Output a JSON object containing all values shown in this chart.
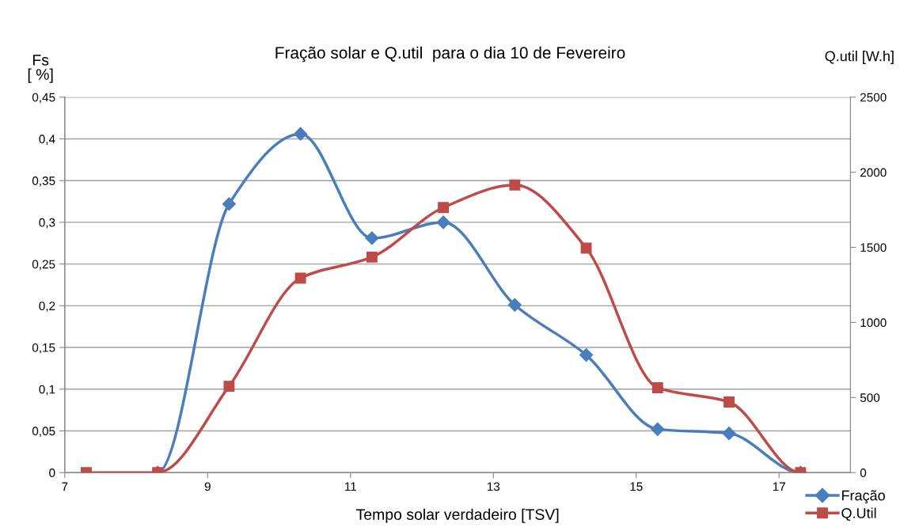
{
  "chart_data": {
    "type": "line",
    "title": "Fração solar e Q.util  para o dia 10 de Fevereiro",
    "xlabel": "Tempo solar verdadeiro [TSV]",
    "ylabel": "Fs\n[ %]",
    "y2label": "Q.util [W.h]",
    "xlim": [
      7,
      18
    ],
    "xticks": [
      7,
      9,
      11,
      13,
      15,
      17
    ],
    "ylim": [
      0,
      0.45
    ],
    "yticks": [
      0,
      {
        "value": 0.05,
        "label": "0,05"
      },
      {
        "value": 0.1,
        "label": "0,1"
      },
      {
        "value": 0.15,
        "label": "0,15"
      },
      {
        "value": 0.2,
        "label": "0,2"
      },
      {
        "value": 0.25,
        "label": "0,25"
      },
      {
        "value": 0.3,
        "label": "0,3"
      },
      {
        "value": 0.35,
        "label": "0,35"
      },
      {
        "value": 0.4,
        "label": "0,4"
      },
      {
        "value": 0.45,
        "label": "0,45"
      }
    ],
    "y2lim": [
      0,
      2500
    ],
    "y2ticks": [
      0,
      500,
      1000,
      1500,
      2000,
      2500
    ],
    "grid": "y",
    "legend": "bottom right",
    "line_style": "solid",
    "series": [
      {
        "name": "Fração",
        "color": "#4a7ebb",
        "marker": "diamond",
        "x": [
          8.3,
          9.3,
          10.3,
          11.3,
          12.3,
          13.3,
          14.3,
          15.3,
          16.3,
          17.3
        ],
        "values": [
          0,
          0.322,
          0.406,
          0.281,
          0.3,
          0.201,
          0.141,
          0.052,
          0.047,
          0
        ]
      },
      {
        "name": "Q.Util",
        "color": "#be4b48",
        "marker": "square",
        "axis": "y2",
        "x": [
          7.3,
          8.3,
          9.3,
          10.3,
          11.3,
          12.3,
          13.3,
          14.3,
          15.3,
          16.3,
          17.3
        ],
        "values": [
          0,
          0,
          575,
          1295,
          1435,
          1765,
          1915,
          1495,
          565,
          470,
          0
        ]
      }
    ]
  }
}
